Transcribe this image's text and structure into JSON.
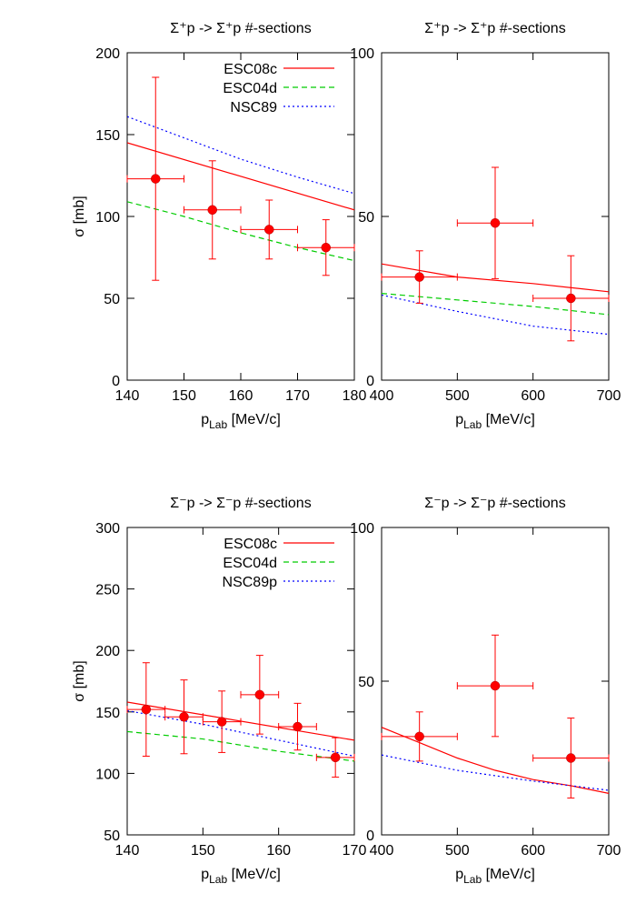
{
  "chart_data": [
    {
      "type": "line",
      "title": "Σ⁺p -> Σ⁺p #-sections",
      "y_label": "σ [mb]",
      "x_label": {
        "text": "p",
        "sub": "Lab",
        "rest": " [MeV/c]"
      },
      "xlim": [
        140,
        180
      ],
      "xticks": [
        140,
        150,
        160,
        170,
        180
      ],
      "ylim": [
        0,
        200
      ],
      "yticks": [
        0,
        50,
        100,
        150,
        200
      ],
      "legend": "top-right",
      "series": [
        {
          "name": "ESC08c",
          "color": "#ff0000",
          "style": "solid",
          "x": [
            140,
            180
          ],
          "values": [
            145,
            104
          ]
        },
        {
          "name": "ESC04d",
          "color": "#00cc00",
          "style": "dashed",
          "x": [
            140,
            150,
            160,
            170,
            180
          ],
          "values": [
            109,
            100,
            90,
            81,
            73
          ]
        },
        {
          "name": "NSC89",
          "color": "#0000ff",
          "style": "dotted",
          "x": [
            140,
            150,
            160,
            170,
            180
          ],
          "values": [
            161,
            148,
            135,
            124,
            114
          ]
        }
      ],
      "points": {
        "color": "#ff0000",
        "x": [
          145,
          155,
          165,
          175
        ],
        "values": [
          123,
          104,
          92,
          81
        ],
        "xerr": [
          5,
          5,
          5,
          5
        ],
        "yerr": [
          62,
          30,
          18,
          17
        ]
      }
    },
    {
      "type": "line",
      "title": "Σ⁺p -> Σ⁺p #-sections",
      "x_label": {
        "text": "p",
        "sub": "Lab",
        "rest": " [MeV/c]"
      },
      "xlim": [
        400,
        700
      ],
      "xticks": [
        400,
        500,
        600,
        700
      ],
      "ylim": [
        0,
        100
      ],
      "yticks": [
        0,
        50,
        100
      ],
      "series": [
        {
          "color": "#ff0000",
          "style": "solid",
          "x": [
            400,
            500,
            600,
            700
          ],
          "values": [
            35.5,
            31.5,
            29.5,
            27
          ]
        },
        {
          "color": "#00cc00",
          "style": "dashed",
          "x": [
            400,
            500,
            600,
            700
          ],
          "values": [
            26.5,
            24.5,
            22.5,
            20
          ]
        },
        {
          "color": "#0000ff",
          "style": "dotted",
          "x": [
            400,
            500,
            600,
            700
          ],
          "values": [
            26,
            21,
            16.5,
            14
          ]
        }
      ],
      "points": {
        "color": "#ff0000",
        "x": [
          450,
          550,
          650
        ],
        "values": [
          31.5,
          48,
          25
        ],
        "xerr": [
          50,
          50,
          50
        ],
        "yerr": [
          8,
          17,
          13
        ]
      }
    },
    {
      "type": "line",
      "title": "Σ⁻p -> Σ⁻p #-sections",
      "y_label": "σ [mb]",
      "x_label": {
        "text": "p",
        "sub": "Lab",
        "rest": " [MeV/c]"
      },
      "xlim": [
        140,
        170
      ],
      "xticks": [
        140,
        150,
        160,
        170
      ],
      "ylim": [
        50,
        300
      ],
      "yticks": [
        50,
        100,
        150,
        200,
        250,
        300
      ],
      "legend": "top-right",
      "series": [
        {
          "name": "ESC08c",
          "color": "#ff0000",
          "style": "solid",
          "x": [
            140,
            170
          ],
          "values": [
            158,
            127
          ]
        },
        {
          "name": "ESC04d",
          "color": "#00cc00",
          "style": "dashed",
          "x": [
            140,
            150,
            160,
            170
          ],
          "values": [
            134,
            128,
            118,
            110
          ]
        },
        {
          "name": "NSC89p",
          "color": "#0000ff",
          "style": "dotted",
          "x": [
            140,
            150,
            160,
            170
          ],
          "values": [
            151,
            140,
            127,
            114
          ]
        }
      ],
      "points": {
        "color": "#ff0000",
        "x": [
          142.5,
          147.5,
          152.5,
          157.5,
          162.5,
          167.5
        ],
        "values": [
          152,
          146,
          142,
          164,
          138,
          113
        ],
        "xerr": [
          2.5,
          2.5,
          2.5,
          2.5,
          2.5,
          2.5
        ],
        "yerr": [
          38,
          30,
          25,
          32,
          19,
          16
        ]
      }
    },
    {
      "type": "line",
      "title": "Σ⁻p -> Σ⁻p #-sections",
      "x_label": {
        "text": "p",
        "sub": "Lab",
        "rest": " [MeV/c]"
      },
      "xlim": [
        400,
        700
      ],
      "xticks": [
        400,
        500,
        600,
        700
      ],
      "ylim": [
        0,
        100
      ],
      "yticks": [
        0,
        50,
        100
      ],
      "series": [
        {
          "color": "#ff0000",
          "style": "solid",
          "x": [
            400,
            450,
            500,
            550,
            600,
            650,
            700
          ],
          "values": [
            35,
            30,
            25,
            21,
            18,
            16,
            13.5
          ]
        },
        {
          "color": "#0000ff",
          "style": "dotted",
          "x": [
            400,
            500,
            600,
            700
          ],
          "values": [
            26,
            21,
            17.5,
            14.5
          ]
        }
      ],
      "points": {
        "color": "#ff0000",
        "x": [
          450,
          550,
          650
        ],
        "values": [
          32,
          48.5,
          25
        ],
        "xerr": [
          50,
          50,
          50
        ],
        "yerr": [
          8,
          16.5,
          13
        ]
      }
    }
  ]
}
